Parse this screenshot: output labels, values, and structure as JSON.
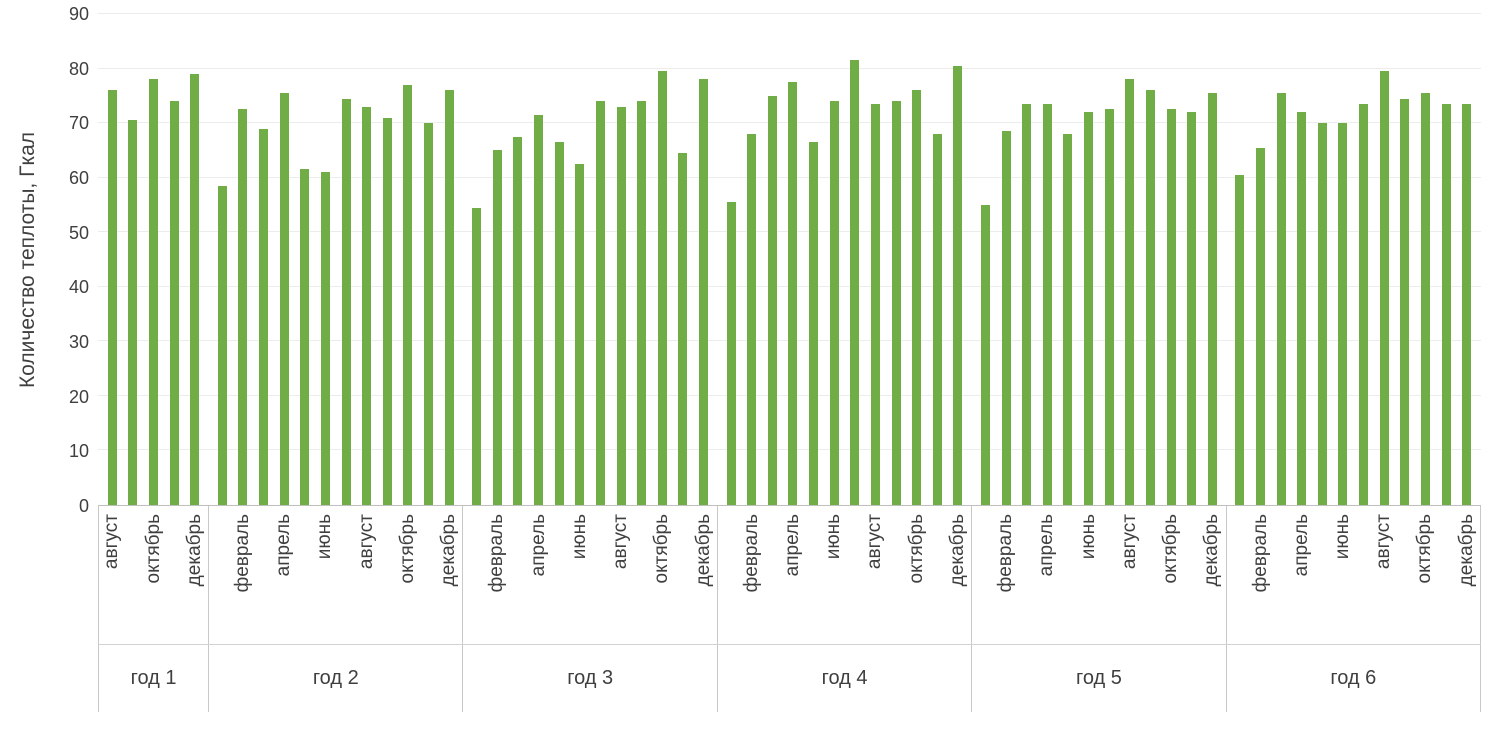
{
  "chart_data": {
    "type": "bar",
    "title": "",
    "xlabel": "",
    "ylabel": "Количество теплоты, Гкал",
    "ylim": [
      0,
      90
    ],
    "yticks": [
      0,
      10,
      20,
      30,
      40,
      50,
      60,
      70,
      80,
      90
    ],
    "grid": true,
    "legend": false,
    "bar_color": "#70AD47",
    "groups": [
      {
        "label": "год 1",
        "month_labels": [
          "август",
          "",
          "октябрь",
          "",
          "декабрь"
        ],
        "values": [
          76,
          70.5,
          78,
          74,
          79
        ]
      },
      {
        "label": "год 2",
        "month_labels": [
          "",
          "февраль",
          "",
          "апрель",
          "",
          "июнь",
          "",
          "август",
          "",
          "октябрь",
          "",
          "декабрь"
        ],
        "values": [
          58.5,
          72.5,
          69,
          75.5,
          61.5,
          61,
          74.5,
          73,
          71,
          77,
          70,
          76
        ]
      },
      {
        "label": "год 3",
        "month_labels": [
          "",
          "февраль",
          "",
          "апрель",
          "",
          "июнь",
          "",
          "август",
          "",
          "октябрь",
          "",
          "декабрь"
        ],
        "values": [
          54.5,
          65,
          67.5,
          71.5,
          66.5,
          62.5,
          74,
          73,
          74,
          79.5,
          64.5,
          78
        ]
      },
      {
        "label": "год 4",
        "month_labels": [
          "",
          "февраль",
          "",
          "апрель",
          "",
          "июнь",
          "",
          "август",
          "",
          "октябрь",
          "",
          "декабрь"
        ],
        "values": [
          55.5,
          68,
          75,
          77.5,
          66.5,
          74,
          81.5,
          73.5,
          74,
          76,
          68,
          80.5
        ]
      },
      {
        "label": "год 5",
        "month_labels": [
          "",
          "февраль",
          "",
          "апрель",
          "",
          "июнь",
          "",
          "август",
          "",
          "октябрь",
          "",
          "декабрь"
        ],
        "values": [
          55,
          68.5,
          73.5,
          73.5,
          68,
          72,
          72.5,
          78,
          76,
          72.5,
          72,
          75.5
        ]
      },
      {
        "label": "год 6",
        "month_labels": [
          "",
          "февраль",
          "",
          "апрель",
          "",
          "июнь",
          "",
          "август",
          "",
          "октябрь",
          "",
          "декабрь"
        ],
        "values": [
          60.5,
          65.5,
          75.5,
          72,
          70,
          70,
          73.5,
          79.5,
          74.5,
          75.5,
          73.5,
          73.5
        ]
      }
    ]
  }
}
